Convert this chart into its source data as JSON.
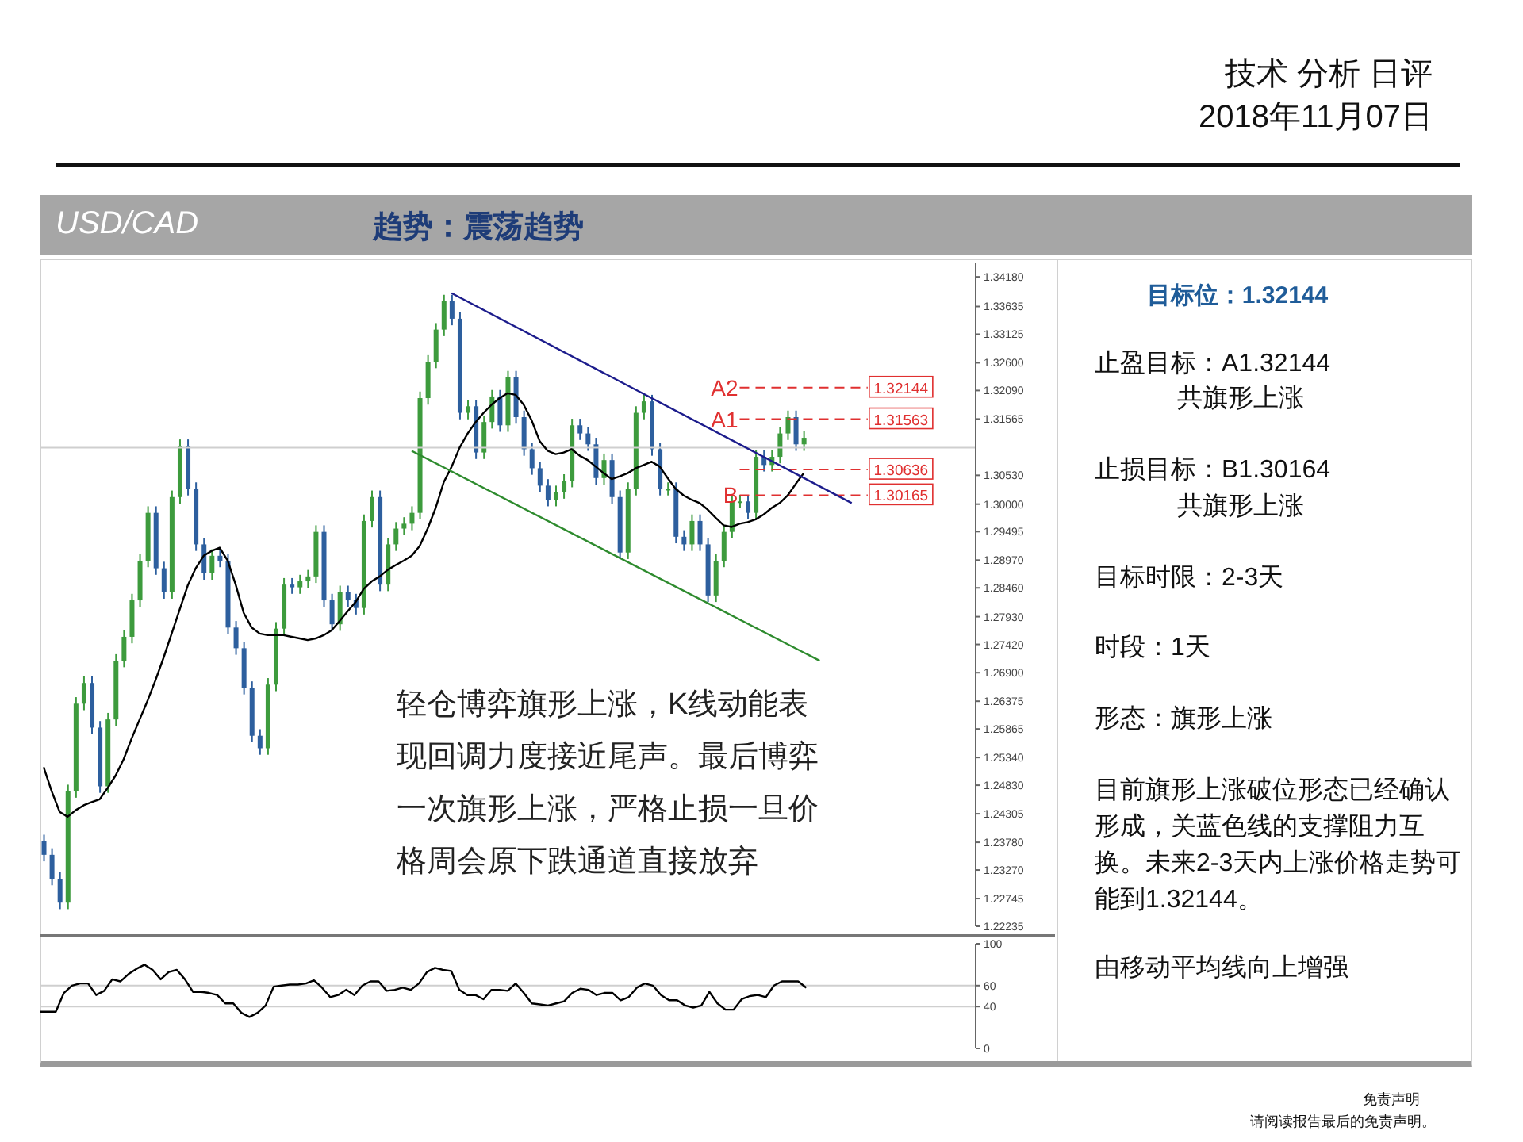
{
  "chart_data": [
    {
      "type": "candlestick",
      "title": "USD/CAD",
      "subtitle": "趋势：震荡趋势",
      "categories": [
        null,
        null,
        null,
        null,
        null,
        null,
        null,
        null,
        null,
        null,
        null,
        null,
        null,
        null,
        null,
        null,
        null,
        null,
        null,
        null,
        null,
        null,
        null,
        null,
        null,
        null,
        null,
        null,
        null,
        null,
        null,
        null,
        null,
        null,
        null,
        null,
        null,
        null,
        null,
        null,
        null,
        null,
        null,
        null,
        null,
        null,
        null,
        null,
        null,
        null,
        null,
        null,
        null,
        null,
        null,
        null,
        null,
        null,
        null,
        null,
        null,
        null,
        null,
        null,
        null,
        null,
        null,
        null,
        null,
        null,
        null,
        null,
        null,
        null,
        null,
        null,
        null,
        null,
        null,
        null,
        null,
        null,
        null,
        null,
        null,
        null,
        null,
        null,
        null,
        null,
        null,
        null,
        null,
        null,
        null,
        null,
        null,
        null,
        null,
        null,
        null,
        null,
        null,
        null,
        null,
        null,
        null,
        null,
        null,
        null,
        null,
        null,
        null,
        null,
        null,
        null,
        null
      ],
      "ohlc": [
        [
          1.238,
          1.2392,
          1.2343,
          1.2355
        ],
        [
          1.2355,
          1.2367,
          1.2299,
          1.2311
        ],
        [
          1.2311,
          1.2323,
          1.2255,
          1.2267
        ],
        [
          1.2267,
          1.2484,
          1.2255,
          1.2472
        ],
        [
          1.2472,
          1.2645,
          1.246,
          1.2633
        ],
        [
          1.2633,
          1.2683,
          1.2621,
          1.2671
        ],
        [
          1.2671,
          1.2683,
          1.2577,
          1.2589
        ],
        [
          1.2589,
          1.2601,
          1.2469,
          1.2481
        ],
        [
          1.2481,
          1.2616,
          1.2469,
          1.2604
        ],
        [
          1.2604,
          1.2724,
          1.2592,
          1.2712
        ],
        [
          1.2712,
          1.2768,
          1.27,
          1.2756
        ],
        [
          1.2756,
          1.2835,
          1.2744,
          1.2823
        ],
        [
          1.2823,
          1.2908,
          1.2811,
          1.2896
        ],
        [
          1.2896,
          1.2996,
          1.2884,
          1.2984
        ],
        [
          1.2984,
          1.2996,
          1.287,
          1.2882
        ],
        [
          1.2882,
          1.2894,
          1.2826,
          1.2838
        ],
        [
          1.2838,
          1.3025,
          1.2826,
          1.3013
        ],
        [
          1.3013,
          1.3119,
          1.3001,
          1.3107
        ],
        [
          1.3107,
          1.3119,
          1.3016,
          1.3028
        ],
        [
          1.3028,
          1.304,
          1.2914,
          1.2926
        ],
        [
          1.2926,
          1.2938,
          1.2861,
          1.2873
        ],
        [
          1.2873,
          1.2917,
          1.2861,
          1.2905
        ],
        [
          1.2905,
          1.2917,
          1.2884,
          1.2896
        ],
        [
          1.2896,
          1.2908,
          1.2761,
          1.2773
        ],
        [
          1.2773,
          1.2785,
          1.2723,
          1.2735
        ],
        [
          1.2735,
          1.2747,
          1.265,
          1.2662
        ],
        [
          1.2662,
          1.2674,
          1.2562,
          1.2574
        ],
        [
          1.2574,
          1.2586,
          1.2539,
          1.2551
        ],
        [
          1.2551,
          1.268,
          1.2539,
          1.2668
        ],
        [
          1.2668,
          1.2783,
          1.2656,
          1.2771
        ],
        [
          1.2771,
          1.2864,
          1.2759,
          1.2852
        ],
        [
          1.2852,
          1.2864,
          1.2835,
          1.2847
        ],
        [
          1.2847,
          1.287,
          1.2835,
          1.2858
        ],
        [
          1.2858,
          1.2879,
          1.2846,
          1.2867
        ],
        [
          1.2867,
          1.2961,
          1.2855,
          1.2949
        ],
        [
          1.2949,
          1.2961,
          1.2811,
          1.2823
        ],
        [
          1.2823,
          1.2835,
          1.2767,
          1.2779
        ],
        [
          1.2779,
          1.285,
          1.2767,
          1.2838
        ],
        [
          1.2838,
          1.285,
          1.2811,
          1.2823
        ],
        [
          1.2823,
          1.2835,
          1.2797,
          1.2809
        ],
        [
          1.2809,
          1.2981,
          1.2797,
          1.2969
        ],
        [
          1.2969,
          1.3025,
          1.2957,
          1.3013
        ],
        [
          1.3013,
          1.3025,
          1.284,
          1.2852
        ],
        [
          1.2852,
          1.2938,
          1.284,
          1.2926
        ],
        [
          1.2926,
          1.2967,
          1.2914,
          1.2955
        ],
        [
          1.2955,
          1.2976,
          1.2943,
          1.2964
        ],
        [
          1.2964,
          1.2996,
          1.2952,
          1.2984
        ],
        [
          1.2984,
          1.3207,
          1.2972,
          1.3195
        ],
        [
          1.3195,
          1.3274,
          1.3183,
          1.3262
        ],
        [
          1.3262,
          1.3333,
          1.325,
          1.3321
        ],
        [
          1.3321,
          1.3385,
          1.3309,
          1.3373
        ],
        [
          1.3373,
          1.3385,
          1.3329,
          1.3341
        ],
        [
          1.3341,
          1.3353,
          1.3156,
          1.3168
        ],
        [
          1.3168,
          1.3192,
          1.3156,
          1.318
        ],
        [
          1.318,
          1.3192,
          1.3083,
          1.3095
        ],
        [
          1.3095,
          1.3163,
          1.3083,
          1.3151
        ],
        [
          1.3151,
          1.321,
          1.3139,
          1.3198
        ],
        [
          1.3198,
          1.321,
          1.3133,
          1.3145
        ],
        [
          1.3145,
          1.3245,
          1.3133,
          1.3233
        ],
        [
          1.3233,
          1.3245,
          1.3148,
          1.316
        ],
        [
          1.316,
          1.3172,
          1.3089,
          1.3101
        ],
        [
          1.3101,
          1.3113,
          1.3054,
          1.3066
        ],
        [
          1.3066,
          1.3078,
          1.3022,
          1.3034
        ],
        [
          1.3034,
          1.3046,
          1.2996,
          1.3008
        ],
        [
          1.3008,
          1.3034,
          1.2996,
          1.3022
        ],
        [
          1.3022,
          1.3055,
          1.301,
          1.3043
        ],
        [
          1.3043,
          1.3157,
          1.3031,
          1.3145
        ],
        [
          1.3145,
          1.3157,
          1.3118,
          1.313
        ],
        [
          1.313,
          1.3142,
          1.3098,
          1.311
        ],
        [
          1.311,
          1.3122,
          1.3036,
          1.3048
        ],
        [
          1.3048,
          1.3093,
          1.3036,
          1.3081
        ],
        [
          1.3081,
          1.3093,
          1.3001,
          1.3013
        ],
        [
          1.3013,
          1.3025,
          1.2899,
          1.2911
        ],
        [
          1.2911,
          1.304,
          1.2899,
          1.3028
        ],
        [
          1.3028,
          1.318,
          1.3016,
          1.3168
        ],
        [
          1.3168,
          1.3201,
          1.3156,
          1.3189
        ],
        [
          1.3189,
          1.3201,
          1.3089,
          1.3101
        ],
        [
          1.3101,
          1.3113,
          1.3016,
          1.3028
        ],
        [
          1.3028,
          1.304,
          1.3016,
          1.3028
        ],
        [
          1.3028,
          1.304,
          1.2928,
          1.294
        ],
        [
          1.294,
          1.2952,
          1.2914,
          1.2926
        ],
        [
          1.2926,
          1.2981,
          1.2914,
          1.2969
        ],
        [
          1.2969,
          1.2981,
          1.2914,
          1.2926
        ],
        [
          1.2926,
          1.2938,
          1.282,
          1.2832
        ],
        [
          1.2832,
          1.2908,
          1.282,
          1.2896
        ],
        [
          1.2896,
          1.2961,
          1.2884,
          1.2949
        ],
        [
          1.2949,
          1.3017,
          1.2937,
          1.3005
        ],
        [
          1.3005,
          1.3017,
          1.2993,
          1.3005
        ],
        [
          1.3005,
          1.3017,
          1.2972,
          1.2984
        ],
        [
          1.2984,
          1.3099,
          1.2972,
          1.3087
        ],
        [
          1.3087,
          1.3099,
          1.306,
          1.3072
        ],
        [
          1.3072,
          1.3099,
          1.306,
          1.3087
        ],
        [
          1.3087,
          1.3142,
          1.3075,
          1.313
        ],
        [
          1.313,
          1.3172,
          1.3118,
          1.316
        ],
        [
          1.316,
          1.3172,
          1.3098,
          1.311
        ],
        [
          1.311,
          1.3134,
          1.3098,
          1.3122
        ],
        null,
        null,
        null,
        null,
        null,
        null,
        null,
        null,
        null,
        null,
        null,
        null,
        null,
        null,
        null,
        null,
        null,
        null,
        null,
        null,
        null
      ],
      "colors": [
        "#2d5f9e",
        "#2d5f9e",
        "#2d5f9e",
        "#3d9b3d",
        "#3d9b3d",
        "#3d9b3d",
        "#2d5f9e",
        "#2d5f9e",
        "#3d9b3d",
        "#3d9b3d",
        "#3d9b3d",
        "#3d9b3d",
        "#3d9b3d",
        "#3d9b3d",
        "#2d5f9e",
        "#2d5f9e",
        "#3d9b3d",
        "#3d9b3d",
        "#2d5f9e",
        "#2d5f9e",
        "#2d5f9e",
        "#3d9b3d",
        "#2d5f9e",
        "#2d5f9e",
        "#2d5f9e",
        "#2d5f9e",
        "#2d5f9e",
        "#2d5f9e",
        "#3d9b3d",
        "#3d9b3d",
        "#3d9b3d",
        "#2d5f9e",
        "#3d9b3d",
        "#3d9b3d",
        "#3d9b3d",
        "#2d5f9e",
        "#2d5f9e",
        "#3d9b3d",
        "#2d5f9e",
        "#2d5f9e",
        "#3d9b3d",
        "#3d9b3d",
        "#2d5f9e",
        "#3d9b3d",
        "#3d9b3d",
        "#3d9b3d",
        "#3d9b3d",
        "#3d9b3d",
        "#3d9b3d",
        "#3d9b3d",
        "#3d9b3d",
        "#2d5f9e",
        "#2d5f9e",
        "#3d9b3d",
        "#2d5f9e",
        "#3d9b3d",
        "#3d9b3d",
        "#2d5f9e",
        "#3d9b3d",
        "#2d5f9e",
        "#2d5f9e",
        "#2d5f9e",
        "#2d5f9e",
        "#2d5f9e",
        "#3d9b3d",
        "#3d9b3d",
        "#3d9b3d",
        "#2d5f9e",
        "#2d5f9e",
        "#2d5f9e",
        "#3d9b3d",
        "#2d5f9e",
        "#2d5f9e",
        "#3d9b3d",
        "#3d9b3d",
        "#3d9b3d",
        "#2d5f9e",
        "#2d5f9e",
        "#3d9b3d",
        "#2d5f9e",
        "#2d5f9e",
        "#3d9b3d",
        "#2d5f9e",
        "#2d5f9e",
        "#3d9b3d",
        "#3d9b3d",
        "#3d9b3d",
        "#3d9b3d",
        "#2d5f9e",
        "#3d9b3d",
        "#2d5f9e",
        "#3d9b3d",
        "#3d9b3d",
        "#3d9b3d",
        "#2d5f9e",
        "#3d9b3d",
        null,
        null,
        null,
        null,
        null,
        null,
        null,
        null,
        null,
        null,
        null,
        null,
        null,
        null,
        null,
        null,
        null,
        null,
        null,
        null,
        null
      ],
      "series": [
        {
          "type": "line",
          "color": "#000000",
          "values": [
            1.2516,
            1.2472,
            1.2434,
            1.2425,
            1.2437,
            1.2446,
            1.2452,
            1.2457,
            1.2478,
            1.2501,
            1.2531,
            1.2569,
            1.2604,
            1.2639,
            1.2677,
            1.2718,
            1.2762,
            1.2806,
            1.285,
            1.2882,
            1.2905,
            1.2914,
            1.292,
            1.2896,
            1.2852,
            1.28,
            1.2773,
            1.2762,
            1.2759,
            1.2759,
            1.2759,
            1.2756,
            1.2753,
            1.275,
            1.2753,
            1.2759,
            1.2768,
            1.2785,
            1.2803,
            1.282,
            1.2844,
            1.2858,
            1.2867,
            1.2879,
            1.2888,
            1.2896,
            1.2905,
            1.2923,
            1.2955,
            1.2993,
            1.304,
            1.3069,
            1.3104,
            1.313,
            1.3151,
            1.3168,
            1.3183,
            1.3195,
            1.3204,
            1.3201,
            1.3183,
            1.3154,
            1.3116,
            1.3098,
            1.3092,
            1.3095,
            1.3101,
            1.3089,
            1.3081,
            1.3069,
            1.3057,
            1.3046,
            1.3051,
            1.3057,
            1.3066,
            1.3072,
            1.3078,
            1.3069,
            1.3048,
            1.3028,
            1.3016,
            1.3008,
            1.3002,
            1.299,
            1.2975,
            1.2961,
            1.2958,
            1.2964,
            1.2967,
            1.2972,
            1.2981,
            1.2993,
            1.3002,
            1.3016,
            1.3037,
            1.3057,
            null,
            null,
            null,
            null,
            null,
            null,
            null,
            null,
            null,
            null,
            null,
            null,
            null,
            null,
            null,
            null,
            null,
            null,
            null,
            null,
            null
          ]
        },
        {
          "type": "line",
          "color": "#1c1c8c",
          "values": [
            null,
            null,
            null,
            null,
            null,
            null,
            null,
            null,
            null,
            null,
            null,
            null,
            null,
            null,
            null,
            null,
            null,
            null,
            null,
            null,
            null,
            null,
            null,
            null,
            null,
            null,
            null,
            null,
            null,
            null,
            null,
            null,
            null,
            null,
            null,
            null,
            null,
            null,
            null,
            null,
            null,
            null,
            null,
            null,
            null,
            null,
            null,
            null,
            null,
            null,
            null,
            1.3388,
            null,
            null,
            null,
            null,
            null,
            null,
            null,
            null,
            null,
            null,
            null,
            null,
            null,
            null,
            null,
            null,
            null,
            null,
            null,
            null,
            null,
            null,
            null,
            null,
            null,
            null,
            null,
            null,
            null,
            null,
            null,
            null,
            null,
            null,
            null,
            null,
            null,
            null,
            null,
            null,
            null,
            null,
            null,
            null,
            null,
            null,
            null,
            null,
            null,
            1.3002,
            null,
            null,
            null,
            null,
            null,
            null,
            null,
            null,
            null,
            null,
            null,
            null,
            null,
            null,
            null
          ]
        },
        {
          "type": "line",
          "color": "#2e8b2e",
          "values": [
            null,
            null,
            null,
            null,
            null,
            null,
            null,
            null,
            null,
            null,
            null,
            null,
            null,
            null,
            null,
            null,
            null,
            null,
            null,
            null,
            null,
            null,
            null,
            null,
            null,
            null,
            null,
            null,
            null,
            null,
            null,
            null,
            null,
            null,
            null,
            null,
            null,
            null,
            null,
            null,
            null,
            null,
            null,
            null,
            null,
            null,
            1.3098,
            null,
            null,
            null,
            null,
            null,
            null,
            null,
            null,
            null,
            null,
            null,
            null,
            null,
            null,
            null,
            null,
            null,
            null,
            null,
            null,
            null,
            null,
            null,
            null,
            null,
            null,
            null,
            null,
            null,
            null,
            null,
            null,
            null,
            null,
            null,
            null,
            null,
            null,
            null,
            null,
            null,
            null,
            null,
            null,
            null,
            null,
            null,
            null,
            null,
            null,
            1.2712,
            null,
            null,
            null,
            null,
            null,
            null,
            null,
            null,
            null,
            null,
            null,
            null,
            null,
            null,
            null,
            null,
            null,
            null,
            null
          ]
        }
      ],
      "ylim": [
        1.22235,
        1.3443
      ],
      "yticks": [
        {
          "value": 1.3418,
          "label": "1.34180"
        },
        {
          "value": 1.33635,
          "label": "1.33635"
        },
        {
          "value": 1.33125,
          "label": "1.33125"
        },
        {
          "value": 1.326,
          "label": "1.32600"
        },
        {
          "value": 1.3209,
          "label": "1.32090"
        },
        {
          "value": 1.31565,
          "label": "1.31565"
        },
        {
          "value": 1.3053,
          "label": "1.30530"
        },
        {
          "value": 1.3,
          "label": "1.30000"
        },
        {
          "value": 1.29495,
          "label": "1.29495"
        },
        {
          "value": 1.2897,
          "label": "1.28970"
        },
        {
          "value": 1.2846,
          "label": "1.28460"
        },
        {
          "value": 1.2793,
          "label": "1.27930"
        },
        {
          "value": 1.2742,
          "label": "1.27420"
        },
        {
          "value": 1.269,
          "label": "1.26900"
        },
        {
          "value": 1.26375,
          "label": "1.26375"
        },
        {
          "value": 1.25865,
          "label": "1.25865"
        },
        {
          "value": 1.2534,
          "label": "1.25340"
        },
        {
          "value": 1.2483,
          "label": "1.24830"
        },
        {
          "value": 1.24305,
          "label": "1.24305"
        },
        {
          "value": 1.2378,
          "label": "1.23780"
        },
        {
          "value": 1.2327,
          "label": "1.23270"
        },
        {
          "value": 1.22745,
          "label": "1.22745"
        },
        {
          "value": 1.22235,
          "label": "1.22235"
        }
      ],
      "ref_lines": [
        {
          "axis": "y",
          "value": 1.3104,
          "color": "#cfcfcf",
          "line_style": "solid"
        },
        {
          "axis": "y",
          "value": 1.32144,
          "label": "A2",
          "color": "#e03030",
          "line_style": "dashed"
        },
        {
          "axis": "y",
          "value": 1.31563,
          "label": "A1",
          "color": "#e03030",
          "line_style": "dashed"
        },
        {
          "axis": "y",
          "value": 1.30636,
          "color": "#e03030",
          "line_style": "dashed"
        },
        {
          "axis": "y",
          "value": 1.30165,
          "label": "B",
          "color": "#e03030",
          "line_style": "dashed"
        }
      ],
      "annotations": [
        "轻仓博弈旗形上涨，K线动能表现回调力度接近尾声。最后博弈一次旗形上涨，严格止损一旦价格周会原下跌通道直接放弃",
        {
          "text": "1.32144",
          "y": 1.32144
        },
        {
          "text": "1.31563",
          "y": 1.31563
        },
        {
          "text": "1.30636",
          "y": 1.30636
        },
        {
          "text": "1.30165",
          "y": 1.30165
        }
      ],
      "tick_labels": "y"
    },
    {
      "type": "line",
      "categories": [
        null,
        null,
        null,
        null,
        null,
        null,
        null,
        null,
        null,
        null,
        null,
        null,
        null,
        null,
        null,
        null,
        null,
        null,
        null,
        null,
        null,
        null,
        null,
        null,
        null,
        null,
        null,
        null,
        null,
        null,
        null,
        null,
        null,
        null,
        null,
        null,
        null,
        null,
        null,
        null,
        null,
        null,
        null,
        null,
        null,
        null,
        null,
        null,
        null,
        null,
        null,
        null,
        null,
        null,
        null,
        null,
        null,
        null,
        null,
        null,
        null,
        null,
        null,
        null,
        null,
        null,
        null,
        null,
        null,
        null,
        null,
        null,
        null,
        null,
        null,
        null,
        null,
        null,
        null,
        null,
        null,
        null,
        null,
        null,
        null,
        null,
        null,
        null,
        null,
        null,
        null,
        null,
        null,
        null,
        null,
        null,
        null,
        null,
        null,
        null,
        null,
        null,
        null,
        null,
        null,
        null,
        null,
        null,
        null,
        null,
        null,
        null,
        null,
        null,
        null,
        null,
        null
      ],
      "series": [
        {
          "color": "#000000",
          "values": [
            35,
            35,
            35,
            53,
            60,
            62,
            62,
            51,
            55,
            66,
            64,
            71,
            76,
            80,
            75,
            66,
            73,
            75,
            66,
            54,
            54,
            53,
            51,
            43,
            43,
            34,
            30,
            34,
            41,
            59,
            60,
            61,
            61,
            62,
            65,
            58,
            49,
            51,
            56,
            51,
            60,
            64,
            64,
            55,
            56,
            58,
            56,
            62,
            73,
            77,
            75,
            74,
            56,
            51,
            51,
            47,
            56,
            56,
            55,
            62,
            53,
            43,
            42,
            41,
            43,
            45,
            53,
            57,
            56,
            51,
            53,
            53,
            46,
            49,
            58,
            62,
            60,
            51,
            46,
            46,
            41,
            39,
            41,
            54,
            43,
            37,
            37,
            47,
            50,
            51,
            49,
            60,
            64,
            64,
            64,
            58,
            null,
            null,
            null,
            null,
            null,
            null,
            null,
            null,
            null,
            null,
            null,
            null,
            null,
            null,
            null,
            null,
            null,
            null,
            null,
            null,
            null
          ]
        }
      ],
      "ylim": [
        0,
        100
      ],
      "yticks": [
        0,
        40,
        60,
        100
      ],
      "ref_lines": [
        {
          "axis": "y",
          "value": 40,
          "color": "#cfcfcf",
          "line_style": "solid"
        },
        {
          "axis": "y",
          "value": 60,
          "color": "#cfcfcf",
          "line_style": "solid"
        }
      ],
      "tick_labels": "y"
    },
    {
      "type": "other",
      "title": "技术 分析 日评",
      "subtitle": "2018年11月07日",
      "annotations": [
        "目标位：1.32144",
        "止盈目标：A1.32144",
        "共旗形上涨",
        "止损目标：B1.30164",
        "共旗形上涨",
        "目标时限：2-3天",
        "时段：1天",
        "形态：旗形上涨",
        "目前旗形上涨破位形态已经确认形成，关蓝色线的支撑阻力互换。未来2-3天内上涨价格走势可能到1.32144。",
        "由移动平均线向上增强",
        "免责声明",
        "请阅读报告最后的免责声明。"
      ]
    }
  ]
}
